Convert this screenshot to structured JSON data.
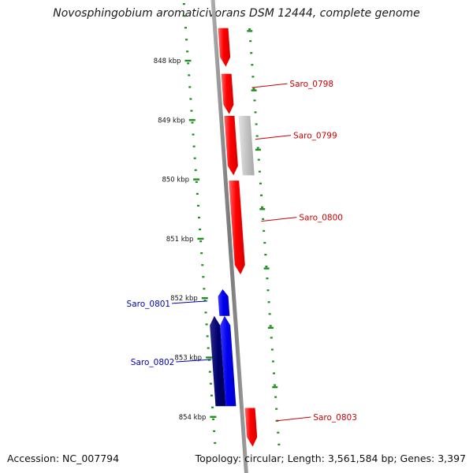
{
  "title": "Novosphingobium aromaticivorans DSM 12444, complete genome",
  "footer": {
    "accession": "Accession: NC_007794",
    "summary": "Topology: circular; Length: 3,561,584 bp; Genes: 3,397"
  },
  "colors": {
    "forward_gene": "#ff0000",
    "forward_gene_light": "#ff9a9a",
    "reverse_gene": "#0000ee",
    "reverse_gene_dark": "#00006e",
    "selected_gene": "#c0c0c0",
    "backbone": "#888888",
    "tick_marks": "#1f8f1f",
    "forward_label": "#cc0000",
    "reverse_label": "#0000bb"
  },
  "scale": {
    "unit": "kbp",
    "ticks": [
      {
        "kbp": 848,
        "label": "848 kbp"
      },
      {
        "kbp": 849,
        "label": "849 kbp"
      },
      {
        "kbp": 850,
        "label": "850 kbp"
      },
      {
        "kbp": 851,
        "label": "851 kbp"
      },
      {
        "kbp": 852,
        "label": "852 kbp"
      },
      {
        "kbp": 853,
        "label": "853 kbp"
      },
      {
        "kbp": 854,
        "label": "854 kbp"
      }
    ]
  },
  "genes": [
    {
      "id": "Saro_0797",
      "label": "",
      "strand": "+",
      "start_kbp": 847.45,
      "end_kbp": 848.1,
      "state": "normal"
    },
    {
      "id": "Saro_0798",
      "label": "Saro_0798",
      "strand": "+",
      "start_kbp": 848.22,
      "end_kbp": 848.9,
      "state": "normal"
    },
    {
      "id": "Saro_0799_selected",
      "label": "",
      "strand": "+",
      "start_kbp": 848.93,
      "end_kbp": 849.93,
      "state": "selected"
    },
    {
      "id": "Saro_0799",
      "label": "Saro_0799",
      "strand": "+",
      "start_kbp": 848.93,
      "end_kbp": 849.93,
      "state": "normal"
    },
    {
      "id": "Saro_0800",
      "label": "Saro_0800",
      "strand": "+",
      "start_kbp": 850.02,
      "end_kbp": 851.6,
      "state": "normal"
    },
    {
      "id": "Saro_0801",
      "label": "Saro_0801",
      "strand": "-",
      "start_kbp": 851.85,
      "end_kbp": 852.3,
      "state": "normal"
    },
    {
      "id": "Saro_0802",
      "label": "Saro_0802",
      "strand": "-",
      "start_kbp": 852.3,
      "end_kbp": 853.82,
      "state": "normal"
    },
    {
      "id": "Saro_0802_dark",
      "label": "",
      "strand": "-",
      "start_kbp": 852.3,
      "end_kbp": 853.82,
      "state": "dark"
    },
    {
      "id": "Saro_0803",
      "label": "Saro_0803",
      "strand": "+",
      "start_kbp": 853.85,
      "end_kbp": 854.5,
      "state": "normal"
    }
  ]
}
